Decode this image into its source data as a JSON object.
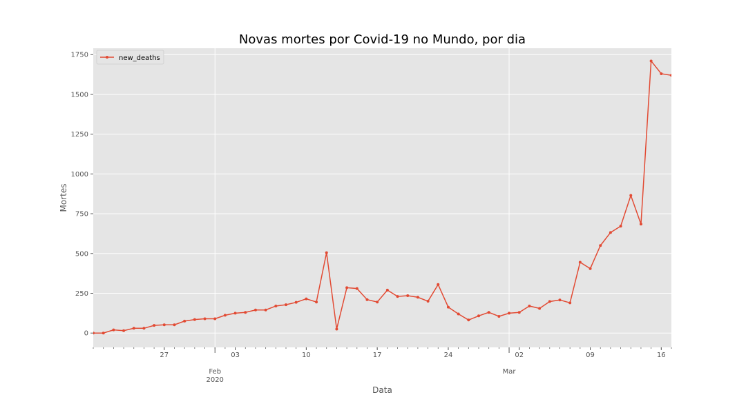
{
  "chart_data": {
    "type": "line",
    "title": "Novas mortes por Covid-19 no Mundo, por dia",
    "xlabel": "Data",
    "ylabel": "Mortes",
    "x_range": [
      "2020-01-20",
      "2020-03-17"
    ],
    "ylim": [
      -90,
      1790
    ],
    "yticks": [
      0,
      250,
      500,
      750,
      1000,
      1250,
      1500,
      1750
    ],
    "ytick_labels": [
      "0",
      "250",
      "500",
      "750",
      "1000",
      "1250",
      "1500",
      "1750"
    ],
    "xticks_minor": [
      {
        "date": "2020-01-27",
        "label": "27"
      },
      {
        "date": "2020-02-03",
        "label": "03"
      },
      {
        "date": "2020-02-10",
        "label": "10"
      },
      {
        "date": "2020-02-17",
        "label": "17"
      },
      {
        "date": "2020-02-24",
        "label": "24"
      },
      {
        "date": "2020-03-02",
        "label": "02"
      },
      {
        "date": "2020-03-09",
        "label": "09"
      },
      {
        "date": "2020-03-16",
        "label": "16"
      }
    ],
    "xticks_major": [
      {
        "date": "2020-02-01",
        "label": "Feb",
        "sublabel": "2020"
      },
      {
        "date": "2020-03-01",
        "label": "Mar",
        "sublabel": ""
      }
    ],
    "grid": true,
    "legend": "top-left",
    "series": [
      {
        "name": "new_deaths",
        "color": "#E24A33",
        "x": [
          "2020-01-20",
          "2020-01-21",
          "2020-01-22",
          "2020-01-23",
          "2020-01-24",
          "2020-01-25",
          "2020-01-26",
          "2020-01-27",
          "2020-01-28",
          "2020-01-29",
          "2020-01-30",
          "2020-01-31",
          "2020-02-01",
          "2020-02-02",
          "2020-02-03",
          "2020-02-04",
          "2020-02-05",
          "2020-02-06",
          "2020-02-07",
          "2020-02-08",
          "2020-02-09",
          "2020-02-10",
          "2020-02-11",
          "2020-02-12",
          "2020-02-13",
          "2020-02-14",
          "2020-02-15",
          "2020-02-16",
          "2020-02-17",
          "2020-02-18",
          "2020-02-19",
          "2020-02-20",
          "2020-02-21",
          "2020-02-22",
          "2020-02-23",
          "2020-02-24",
          "2020-02-25",
          "2020-02-26",
          "2020-02-27",
          "2020-02-28",
          "2020-02-29",
          "2020-03-01",
          "2020-03-02",
          "2020-03-03",
          "2020-03-04",
          "2020-03-05",
          "2020-03-06",
          "2020-03-07",
          "2020-03-08",
          "2020-03-09",
          "2020-03-10",
          "2020-03-11",
          "2020-03-12",
          "2020-03-13",
          "2020-03-14",
          "2020-03-15",
          "2020-03-16",
          "2020-03-17"
        ],
        "values": [
          0,
          0,
          20,
          15,
          30,
          30,
          48,
          52,
          52,
          75,
          85,
          90,
          90,
          112,
          125,
          130,
          145,
          145,
          170,
          178,
          193,
          215,
          195,
          505,
          25,
          285,
          280,
          210,
          195,
          270,
          230,
          235,
          225,
          200,
          305,
          163,
          120,
          82,
          108,
          130,
          105,
          125,
          130,
          170,
          155,
          198,
          208,
          190,
          445,
          405,
          550,
          632,
          672,
          865,
          685,
          1710,
          1630,
          1620
        ]
      }
    ]
  }
}
